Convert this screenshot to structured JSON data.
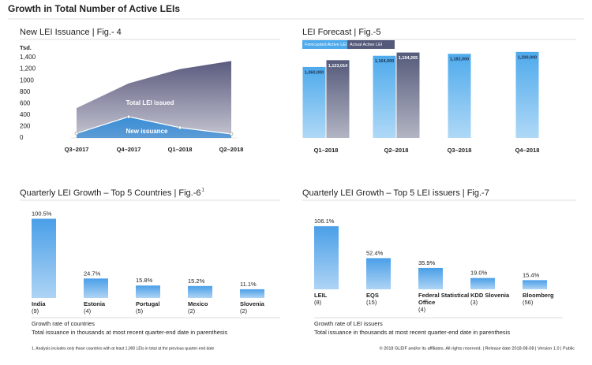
{
  "header": {
    "title": "Growth in Total Number of Active LEIs"
  },
  "chart_data": [
    {
      "type": "area",
      "title": "New LEI Issuance | Fig.- 4",
      "y_unit": "Tsd.",
      "categories": [
        "Q3–2017",
        "Q4–2017",
        "Q1–2018",
        "Q2–2018"
      ],
      "series": [
        {
          "name": "Total LEI issued",
          "color": "#5a5a7e",
          "values": [
            520,
            950,
            1200,
            1340
          ]
        },
        {
          "name": "New issuance",
          "color": "#3b8fd8",
          "values": [
            80,
            370,
            180,
            70
          ]
        }
      ],
      "ylim": [
        0,
        1400
      ],
      "yticks": [
        0,
        200,
        400,
        600,
        800,
        1000,
        {
          "value": 1200,
          "label": "1,200"
        },
        {
          "value": 1400,
          "label": "1,400"
        }
      ]
    },
    {
      "type": "bar",
      "title": "LEI Forecast | Fig.-5",
      "categories": [
        "Q1–2018",
        "Q2–2018",
        "Q3–2018",
        "Q4–2018"
      ],
      "series": [
        {
          "name": "Forecasted Active LEI",
          "color": "#4eaaec",
          "values": [
            1060000,
            1164000,
            1182000,
            1200000
          ],
          "value_labels": [
            "1,060,000",
            "1,164,000",
            "1,182,000",
            "1,200,000"
          ]
        },
        {
          "name": "Actual Active LEI",
          "color": "#555a7a",
          "values": [
            1123014,
            1194265,
            null,
            null
          ],
          "value_labels": [
            "1,123,014",
            "1,194,265",
            null,
            null
          ]
        }
      ],
      "ylim": [
        400000,
        1250000
      ]
    },
    {
      "type": "bar",
      "title": "Quarterly LEI Growth – Top 5 Countries | Fig.-6",
      "title_note": "1",
      "categories": [
        "India",
        "Estonia",
        "Portugal",
        "Mexico",
        "Slovenia"
      ],
      "values": [
        100.5,
        24.7,
        15.8,
        15.2,
        11.1
      ],
      "value_labels": [
        "100.5%",
        "24.7%",
        "15.8%",
        "15.2%",
        "11.1%"
      ],
      "count_labels": [
        "(9)",
        "(4)",
        "(5)",
        "(2)",
        "(2)"
      ],
      "color": "#4a9fe8",
      "ylim": [
        0,
        100
      ],
      "notes": [
        "Growth rate of countries",
        "Total issuance in thousands at most recent quarter-end date in parenthesis"
      ]
    },
    {
      "type": "bar",
      "title": "Quarterly LEI Growth – Top 5 LEI issuers | Fig.-7",
      "categories": [
        "LEIL",
        "EQS",
        "Federal Statistical Office",
        "KDD Slovenia",
        "Bloomberg"
      ],
      "values": [
        106.1,
        52.4,
        35.9,
        19.0,
        15.4
      ],
      "value_labels": [
        "106.1%",
        "52.4%",
        "35.9%",
        "19.0%",
        "15.4%"
      ],
      "count_labels": [
        "(8)",
        "(15)",
        "(4)",
        "(3)",
        "(56)"
      ],
      "color": "#4a9fe8",
      "ylim": [
        0,
        110
      ],
      "notes": [
        "Growth rate of LEI issuers",
        "Total issuance in thousands at most recent quarter-end date in parenthesis"
      ]
    }
  ],
  "footer": {
    "footnote": "1. Analysis includes only those countries with at least 1,000 LEIs in total at the previous quarter-end date",
    "copyright": "© 2018 GLEIF and/or its affiliates. All rights reserved. | Release date 2018-08-08 | Version 1.0 | Public"
  }
}
